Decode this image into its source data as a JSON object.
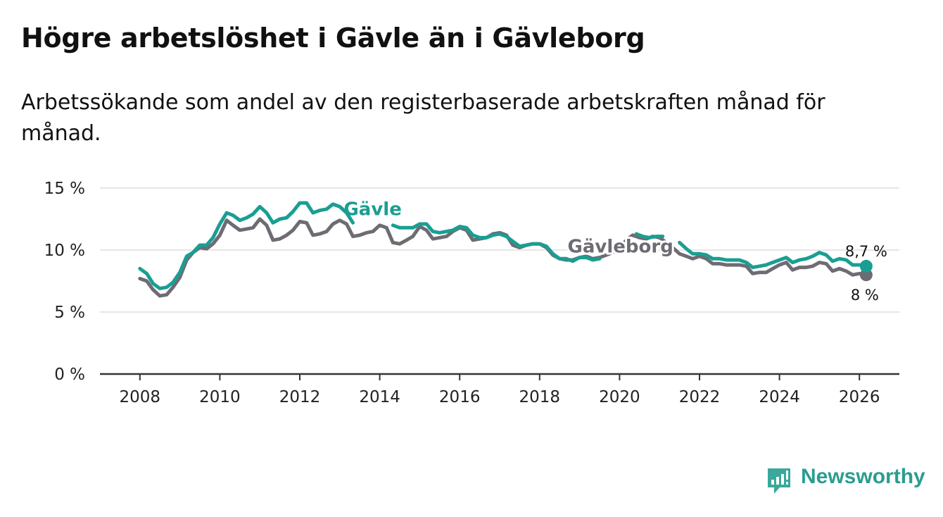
{
  "header": {
    "title": "Högre arbetslöshet i Gävle än i Gävleborg",
    "subtitle": "Arbetssökande som andel av den registerbaserade arbetskraften månad för månad."
  },
  "branding": {
    "name": "Newsworthy"
  },
  "colors": {
    "gavle": "#1a9e92",
    "gavleborg": "#6e6b73",
    "grid": "#dedede",
    "axis": "#333333"
  },
  "chart_data": {
    "type": "line",
    "title": "Högre arbetslöshet i Gävle än i Gävleborg",
    "subtitle": "Arbetssökande som andel av den registerbaserade arbetskraften månad för månad.",
    "xlabel": "",
    "ylabel": "",
    "xlim": [
      2007.0,
      2027.0
    ],
    "ylim": [
      0,
      15
    ],
    "grid": true,
    "x_ticks": [
      2008,
      2010,
      2012,
      2014,
      2016,
      2018,
      2020,
      2022,
      2024,
      2026
    ],
    "x_tick_labels": [
      "2008",
      "2010",
      "2012",
      "2014",
      "2016",
      "2018",
      "2020",
      "2022",
      "2024",
      "2026"
    ],
    "y_ticks": [
      0,
      5,
      10,
      15
    ],
    "y_tick_labels": [
      "0 %",
      "5 %",
      "10 %",
      "15 %"
    ],
    "series": [
      {
        "name": "Gävle",
        "label_pos": "inline",
        "end_label": "8,7 %",
        "points": [
          [
            2008.0,
            8.5
          ],
          [
            2008.17,
            8.1
          ],
          [
            2008.33,
            7.3
          ],
          [
            2008.5,
            6.9
          ],
          [
            2008.67,
            7.0
          ],
          [
            2008.83,
            7.4
          ],
          [
            2009.0,
            8.2
          ],
          [
            2009.17,
            9.5
          ],
          [
            2009.33,
            9.8
          ],
          [
            2009.5,
            10.4
          ],
          [
            2009.67,
            10.4
          ],
          [
            2009.83,
            11.0
          ],
          [
            2010.0,
            12.1
          ],
          [
            2010.17,
            13.0
          ],
          [
            2010.33,
            12.8
          ],
          [
            2010.5,
            12.4
          ],
          [
            2010.67,
            12.6
          ],
          [
            2010.83,
            12.9
          ],
          [
            2011.0,
            13.5
          ],
          [
            2011.17,
            13.0
          ],
          [
            2011.33,
            12.2
          ],
          [
            2011.5,
            12.5
          ],
          [
            2011.67,
            12.6
          ],
          [
            2011.83,
            13.1
          ],
          [
            2012.0,
            13.8
          ],
          [
            2012.17,
            13.8
          ],
          [
            2012.33,
            13.0
          ],
          [
            2012.5,
            13.2
          ],
          [
            2012.67,
            13.3
          ],
          [
            2012.83,
            13.7
          ],
          [
            2013.0,
            13.5
          ],
          [
            2013.17,
            13.0
          ],
          [
            2013.33,
            12.2
          ],
          [
            2014.33,
            12.0
          ],
          [
            2014.5,
            11.8
          ],
          [
            2014.67,
            11.8
          ],
          [
            2014.83,
            11.8
          ],
          [
            2015.0,
            12.1
          ],
          [
            2015.17,
            12.1
          ],
          [
            2015.33,
            11.5
          ],
          [
            2015.5,
            11.4
          ],
          [
            2015.67,
            11.5
          ],
          [
            2015.83,
            11.6
          ],
          [
            2016.0,
            11.9
          ],
          [
            2016.17,
            11.8
          ],
          [
            2016.33,
            11.2
          ],
          [
            2016.5,
            11.0
          ],
          [
            2016.67,
            11.0
          ],
          [
            2016.83,
            11.2
          ],
          [
            2017.0,
            11.3
          ],
          [
            2017.17,
            11.1
          ],
          [
            2017.33,
            10.7
          ],
          [
            2017.5,
            10.3
          ],
          [
            2017.67,
            10.4
          ],
          [
            2017.83,
            10.5
          ],
          [
            2018.0,
            10.5
          ],
          [
            2018.17,
            10.3
          ],
          [
            2018.33,
            9.7
          ],
          [
            2018.5,
            9.3
          ],
          [
            2018.67,
            9.3
          ],
          [
            2018.83,
            9.1
          ],
          [
            2019.0,
            9.4
          ],
          [
            2019.17,
            9.4
          ],
          [
            2019.33,
            9.2
          ],
          [
            2019.5,
            9.3
          ],
          [
            2020.42,
            11.3
          ],
          [
            2020.58,
            11.1
          ],
          [
            2020.75,
            11.0
          ],
          [
            2020.92,
            11.1
          ],
          [
            2021.08,
            11.1
          ],
          [
            2021.5,
            10.6
          ],
          [
            2021.67,
            10.1
          ],
          [
            2021.83,
            9.7
          ],
          [
            2022.0,
            9.7
          ],
          [
            2022.17,
            9.6
          ],
          [
            2022.33,
            9.3
          ],
          [
            2022.5,
            9.3
          ],
          [
            2022.67,
            9.2
          ],
          [
            2022.83,
            9.2
          ],
          [
            2023.0,
            9.2
          ],
          [
            2023.17,
            9.0
          ],
          [
            2023.33,
            8.6
          ],
          [
            2023.5,
            8.7
          ],
          [
            2023.67,
            8.8
          ],
          [
            2023.83,
            9.0
          ],
          [
            2024.0,
            9.2
          ],
          [
            2024.17,
            9.4
          ],
          [
            2024.33,
            9.0
          ],
          [
            2024.5,
            9.2
          ],
          [
            2024.67,
            9.3
          ],
          [
            2024.83,
            9.5
          ],
          [
            2025.0,
            9.8
          ],
          [
            2025.17,
            9.6
          ],
          [
            2025.33,
            9.1
          ],
          [
            2025.5,
            9.3
          ],
          [
            2025.67,
            9.2
          ],
          [
            2025.83,
            8.8
          ],
          [
            2026.0,
            8.8
          ],
          [
            2026.17,
            8.7
          ]
        ]
      },
      {
        "name": "Gävleborg",
        "label_pos": "inline",
        "end_label": "8 %",
        "points": [
          [
            2008.0,
            7.7
          ],
          [
            2008.17,
            7.5
          ],
          [
            2008.33,
            6.8
          ],
          [
            2008.5,
            6.3
          ],
          [
            2008.67,
            6.4
          ],
          [
            2008.83,
            7.0
          ],
          [
            2009.0,
            7.8
          ],
          [
            2009.17,
            9.2
          ],
          [
            2009.33,
            9.8
          ],
          [
            2009.5,
            10.2
          ],
          [
            2009.67,
            10.1
          ],
          [
            2009.83,
            10.5
          ],
          [
            2010.0,
            11.2
          ],
          [
            2010.17,
            12.4
          ],
          [
            2010.33,
            12.0
          ],
          [
            2010.5,
            11.6
          ],
          [
            2010.67,
            11.7
          ],
          [
            2010.83,
            11.8
          ],
          [
            2011.0,
            12.5
          ],
          [
            2011.17,
            12.0
          ],
          [
            2011.33,
            10.8
          ],
          [
            2011.5,
            10.9
          ],
          [
            2011.67,
            11.2
          ],
          [
            2011.83,
            11.6
          ],
          [
            2012.0,
            12.3
          ],
          [
            2012.17,
            12.2
          ],
          [
            2012.33,
            11.2
          ],
          [
            2012.5,
            11.3
          ],
          [
            2012.67,
            11.5
          ],
          [
            2012.83,
            12.1
          ],
          [
            2013.0,
            12.4
          ],
          [
            2013.17,
            12.1
          ],
          [
            2013.33,
            11.1
          ],
          [
            2013.5,
            11.2
          ],
          [
            2013.67,
            11.4
          ],
          [
            2013.83,
            11.5
          ],
          [
            2014.0,
            12.0
          ],
          [
            2014.17,
            11.8
          ],
          [
            2014.33,
            10.6
          ],
          [
            2014.5,
            10.5
          ],
          [
            2014.67,
            10.8
          ],
          [
            2014.83,
            11.1
          ],
          [
            2015.0,
            11.9
          ],
          [
            2015.17,
            11.6
          ],
          [
            2015.33,
            10.9
          ],
          [
            2015.5,
            11.0
          ],
          [
            2015.67,
            11.1
          ],
          [
            2015.83,
            11.5
          ],
          [
            2016.0,
            11.8
          ],
          [
            2016.17,
            11.6
          ],
          [
            2016.33,
            10.8
          ],
          [
            2016.5,
            10.9
          ],
          [
            2016.67,
            11.0
          ],
          [
            2016.83,
            11.3
          ],
          [
            2017.0,
            11.4
          ],
          [
            2017.17,
            11.2
          ],
          [
            2017.33,
            10.4
          ],
          [
            2017.5,
            10.2
          ],
          [
            2017.67,
            10.4
          ],
          [
            2017.83,
            10.5
          ],
          [
            2018.0,
            10.5
          ],
          [
            2018.17,
            10.2
          ],
          [
            2018.33,
            9.6
          ],
          [
            2018.5,
            9.3
          ],
          [
            2018.67,
            9.2
          ],
          [
            2018.83,
            9.2
          ],
          [
            2019.0,
            9.4
          ],
          [
            2019.17,
            9.5
          ],
          [
            2019.33,
            9.3
          ],
          [
            2019.5,
            9.4
          ],
          [
            2019.67,
            9.6
          ],
          [
            2019.83,
            9.8
          ],
          [
            2020.0,
            10.2
          ],
          [
            2020.17,
            10.8
          ],
          [
            2020.33,
            11.2
          ],
          [
            2020.5,
            11.0
          ],
          [
            2020.67,
            10.9
          ],
          [
            2020.83,
            11.1
          ],
          [
            2021.0,
            11.0
          ],
          [
            2021.17,
            10.6
          ],
          [
            2021.33,
            10.2
          ],
          [
            2021.5,
            9.7
          ],
          [
            2021.67,
            9.5
          ],
          [
            2021.83,
            9.3
          ],
          [
            2022.0,
            9.5
          ],
          [
            2022.17,
            9.3
          ],
          [
            2022.33,
            8.9
          ],
          [
            2022.5,
            8.9
          ],
          [
            2022.67,
            8.8
          ],
          [
            2022.83,
            8.8
          ],
          [
            2023.0,
            8.8
          ],
          [
            2023.17,
            8.7
          ],
          [
            2023.33,
            8.1
          ],
          [
            2023.5,
            8.2
          ],
          [
            2023.67,
            8.2
          ],
          [
            2023.83,
            8.5
          ],
          [
            2024.0,
            8.8
          ],
          [
            2024.17,
            9.0
          ],
          [
            2024.33,
            8.4
          ],
          [
            2024.5,
            8.6
          ],
          [
            2024.67,
            8.6
          ],
          [
            2024.83,
            8.7
          ],
          [
            2025.0,
            9.0
          ],
          [
            2025.17,
            8.9
          ],
          [
            2025.33,
            8.3
          ],
          [
            2025.5,
            8.5
          ],
          [
            2025.67,
            8.3
          ],
          [
            2025.83,
            8.0
          ],
          [
            2026.0,
            8.1
          ],
          [
            2026.17,
            8.0
          ]
        ]
      }
    ]
  }
}
